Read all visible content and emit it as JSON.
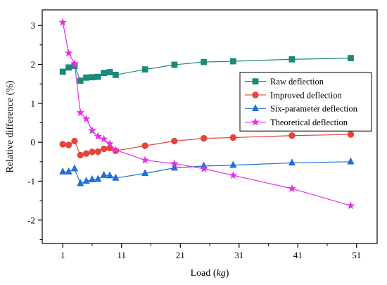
{
  "chart_data": {
    "type": "line",
    "xlabel": "Load (",
    "xlabel_unit": "kg",
    "xlabel_close": ")",
    "ylabel": "Relative difference (%)",
    "xlim": [
      -2.5,
      54.5
    ],
    "ylim": [
      -2.6,
      3.4
    ],
    "xticks": [
      1,
      11,
      21,
      31,
      41,
      51
    ],
    "yticks": [
      -2,
      -1,
      0,
      1,
      2,
      3
    ],
    "xtick_labels": [
      "1",
      "11",
      "21",
      "31",
      "41",
      "51"
    ],
    "ytick_labels": [
      "-2",
      "-1",
      "0",
      "1",
      "2",
      "3"
    ],
    "grid": false,
    "legend_position": "upper-right",
    "series": [
      {
        "name": "Raw deflection",
        "color": "#1a8a7a",
        "marker": "square",
        "x": [
          1,
          2,
          3,
          4,
          5,
          6,
          7,
          8,
          9,
          10,
          15,
          20,
          25,
          30,
          40,
          50
        ],
        "y": [
          1.81,
          1.92,
          1.96,
          1.58,
          1.66,
          1.67,
          1.68,
          1.78,
          1.8,
          1.73,
          1.87,
          1.99,
          2.06,
          2.08,
          2.13,
          2.16
        ]
      },
      {
        "name": "Improved deflection",
        "color": "#e8433b",
        "marker": "circle",
        "x": [
          1,
          2,
          3,
          4,
          5,
          6,
          7,
          8,
          9,
          10,
          15,
          20,
          25,
          30,
          40,
          50
        ],
        "y": [
          -0.05,
          -0.07,
          0.03,
          -0.33,
          -0.29,
          -0.25,
          -0.24,
          -0.17,
          -0.15,
          -0.22,
          -0.09,
          0.03,
          0.1,
          0.12,
          0.17,
          0.2
        ]
      },
      {
        "name": "Six-parameter deflection",
        "color": "#1f6fd6",
        "marker": "triangle",
        "x": [
          1,
          2,
          3,
          4,
          5,
          6,
          7,
          8,
          9,
          10,
          15,
          20,
          25,
          30,
          40,
          50
        ],
        "y": [
          -0.76,
          -0.76,
          -0.68,
          -1.06,
          -1.0,
          -0.96,
          -0.95,
          -0.85,
          -0.86,
          -0.92,
          -0.8,
          -0.66,
          -0.61,
          -0.59,
          -0.53,
          -0.5
        ]
      },
      {
        "name": "Theoretical deflection",
        "color": "#e62ee6",
        "marker": "star",
        "x": [
          1,
          2,
          3,
          4,
          5,
          6,
          7,
          8,
          9,
          10,
          15,
          20,
          25,
          30,
          40,
          50
        ],
        "y": [
          3.08,
          2.29,
          2.02,
          0.76,
          0.6,
          0.3,
          0.15,
          0.08,
          -0.04,
          -0.2,
          -0.46,
          -0.55,
          -0.68,
          -0.85,
          -1.19,
          -1.63
        ]
      }
    ]
  }
}
